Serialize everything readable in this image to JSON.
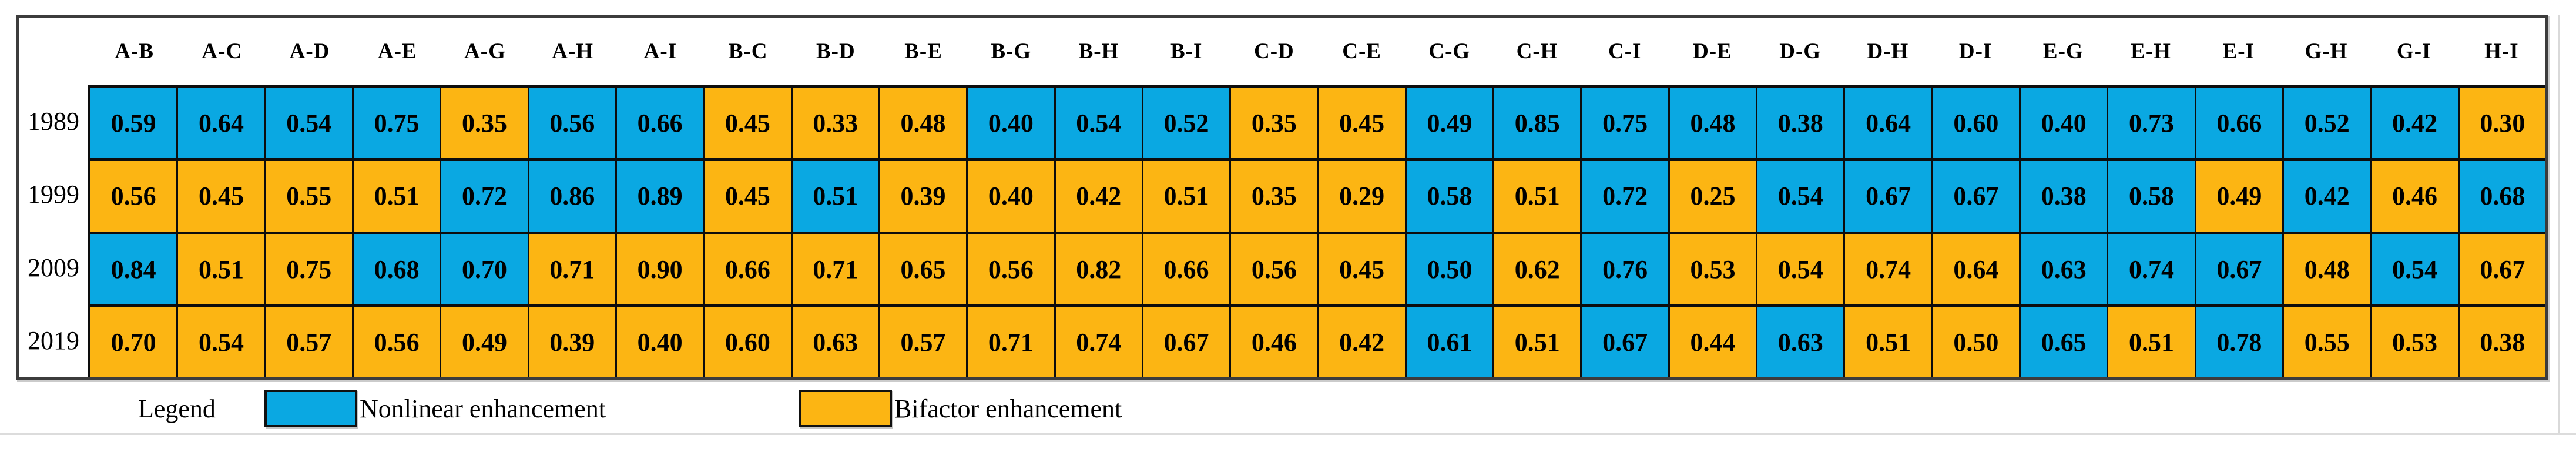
{
  "chart_data": {
    "type": "heatmap",
    "columns": [
      "A-B",
      "A-C",
      "A-D",
      "A-E",
      "A-G",
      "A-H",
      "A-I",
      "B-C",
      "B-D",
      "B-E",
      "B-G",
      "B-H",
      "B-I",
      "C-D",
      "C-E",
      "C-G",
      "C-H",
      "C-I",
      "D-E",
      "D-G",
      "D-H",
      "D-I",
      "E-G",
      "E-H",
      "E-I",
      "G-H",
      "G-I",
      "H-I"
    ],
    "rows": [
      "1989",
      "1999",
      "2009",
      "2019"
    ],
    "values": [
      [
        "0.59",
        "0.64",
        "0.54",
        "0.75",
        "0.35",
        "0.56",
        "0.66",
        "0.45",
        "0.33",
        "0.48",
        "0.40",
        "0.54",
        "0.52",
        "0.35",
        "0.45",
        "0.49",
        "0.85",
        "0.75",
        "0.48",
        "0.38",
        "0.64",
        "0.60",
        "0.40",
        "0.73",
        "0.66",
        "0.52",
        "0.42",
        "0.30"
      ],
      [
        "0.56",
        "0.45",
        "0.55",
        "0.51",
        "0.72",
        "0.86",
        "0.89",
        "0.45",
        "0.51",
        "0.39",
        "0.40",
        "0.42",
        "0.51",
        "0.35",
        "0.29",
        "0.58",
        "0.51",
        "0.72",
        "0.25",
        "0.54",
        "0.67",
        "0.67",
        "0.38",
        "0.58",
        "0.49",
        "0.42",
        "0.46",
        "0.68"
      ],
      [
        "0.84",
        "0.51",
        "0.75",
        "0.68",
        "0.70",
        "0.71",
        "0.90",
        "0.66",
        "0.71",
        "0.65",
        "0.56",
        "0.82",
        "0.66",
        "0.56",
        "0.45",
        "0.50",
        "0.62",
        "0.76",
        "0.53",
        "0.54",
        "0.74",
        "0.64",
        "0.63",
        "0.74",
        "0.67",
        "0.48",
        "0.54",
        "0.67"
      ],
      [
        "0.70",
        "0.54",
        "0.57",
        "0.56",
        "0.49",
        "0.39",
        "0.40",
        "0.60",
        "0.63",
        "0.57",
        "0.71",
        "0.74",
        "0.67",
        "0.46",
        "0.42",
        "0.61",
        "0.51",
        "0.67",
        "0.44",
        "0.63",
        "0.51",
        "0.50",
        "0.65",
        "0.51",
        "0.78",
        "0.55",
        "0.53",
        "0.38"
      ]
    ],
    "classes": [
      [
        "N",
        "N",
        "N",
        "N",
        "B",
        "N",
        "N",
        "B",
        "B",
        "B",
        "N",
        "N",
        "N",
        "B",
        "B",
        "N",
        "N",
        "N",
        "N",
        "N",
        "N",
        "N",
        "N",
        "N",
        "N",
        "N",
        "N",
        "B"
      ],
      [
        "B",
        "B",
        "B",
        "B",
        "N",
        "N",
        "N",
        "B",
        "N",
        "B",
        "B",
        "B",
        "B",
        "B",
        "B",
        "N",
        "B",
        "N",
        "B",
        "N",
        "N",
        "N",
        "N",
        "N",
        "B",
        "N",
        "B",
        "N"
      ],
      [
        "N",
        "B",
        "B",
        "N",
        "N",
        "B",
        "B",
        "B",
        "B",
        "B",
        "B",
        "B",
        "B",
        "B",
        "B",
        "N",
        "B",
        "N",
        "B",
        "B",
        "B",
        "B",
        "N",
        "N",
        "N",
        "B",
        "N",
        "B"
      ],
      [
        "B",
        "B",
        "B",
        "B",
        "B",
        "B",
        "B",
        "B",
        "B",
        "B",
        "B",
        "B",
        "B",
        "B",
        "B",
        "N",
        "B",
        "N",
        "B",
        "N",
        "B",
        "B",
        "N",
        "B",
        "N",
        "B",
        "B",
        "B"
      ]
    ],
    "legend_position": "bottom",
    "grid": true
  },
  "legend": {
    "title": "Legend",
    "items": [
      {
        "label": "Nonlinear enhancement",
        "type": "nonlinear"
      },
      {
        "label": "Bifactor enhancement",
        "type": "bifactor"
      }
    ]
  },
  "colors": {
    "nonlinear": "#0aa8e2",
    "bifactor": "#fcb513"
  }
}
